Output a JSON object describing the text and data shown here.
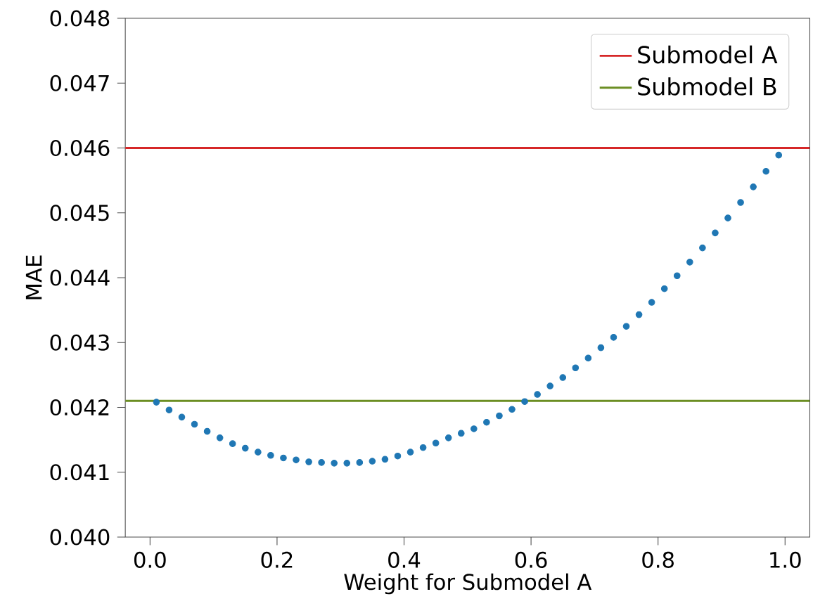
{
  "chart_data": {
    "type": "scatter",
    "xlabel": "Weight for Submodel A",
    "ylabel": "MAE",
    "xlim": [
      -0.039,
      1.039
    ],
    "ylim": [
      0.04,
      0.048
    ],
    "xticks": [
      {
        "value": 0,
        "label": "0.0"
      },
      {
        "value": 0.2,
        "label": "0.2"
      },
      {
        "value": 0.4,
        "label": "0.4"
      },
      {
        "value": 0.6,
        "label": "0.6"
      },
      {
        "value": 0.8,
        "label": "0.8"
      },
      {
        "value": 1,
        "label": "1.0"
      }
    ],
    "yticks": [
      {
        "value": 0.04,
        "label": "0.040"
      },
      {
        "value": 0.041,
        "label": "0.041"
      },
      {
        "value": 0.042,
        "label": "0.042"
      },
      {
        "value": 0.043,
        "label": "0.043"
      },
      {
        "value": 0.044,
        "label": "0.044"
      },
      {
        "value": 0.045,
        "label": "0.045"
      },
      {
        "value": 0.046,
        "label": "0.046"
      },
      {
        "value": 0.047,
        "label": "0.047"
      },
      {
        "value": 0.048,
        "label": "0.048"
      }
    ],
    "marker": "circle",
    "legend": "top right",
    "series": [
      {
        "color": "#1f77b4",
        "x": [
          0.01,
          0.03,
          0.05,
          0.07,
          0.09,
          0.11,
          0.13,
          0.15,
          0.17,
          0.19,
          0.21,
          0.23,
          0.25,
          0.27,
          0.29,
          0.31,
          0.33,
          0.35,
          0.37,
          0.39,
          0.41,
          0.43,
          0.45,
          0.47,
          0.49,
          0.51,
          0.53,
          0.55,
          0.57,
          0.59,
          0.61,
          0.63,
          0.65,
          0.67,
          0.69,
          0.71,
          0.73,
          0.75,
          0.77,
          0.79,
          0.81,
          0.83,
          0.85,
          0.87,
          0.89,
          0.91,
          0.93,
          0.95,
          0.97,
          0.99
        ],
        "values": [
          0.04208,
          0.04196,
          0.04185,
          0.04174,
          0.04163,
          0.04153,
          0.04144,
          0.04137,
          0.04131,
          0.04126,
          0.04122,
          0.04119,
          0.04116,
          0.04115,
          0.04114,
          0.04114,
          0.04115,
          0.04117,
          0.0412,
          0.04125,
          0.04131,
          0.04138,
          0.04145,
          0.04153,
          0.0416,
          0.04167,
          0.04177,
          0.04187,
          0.04197,
          0.04209,
          0.0422,
          0.04233,
          0.04246,
          0.04261,
          0.04276,
          0.04292,
          0.04308,
          0.04325,
          0.04343,
          0.04362,
          0.04383,
          0.04403,
          0.04424,
          0.04446,
          0.04469,
          0.04492,
          0.04516,
          0.0454,
          0.04564,
          0.04589
        ]
      }
    ],
    "ref_lines": [
      {
        "axis": "y",
        "value": 0.046,
        "label": "Submodel A",
        "color": "#d62728"
      },
      {
        "axis": "y",
        "value": 0.0421,
        "label": "Submodel B",
        "color": "#6b8e23"
      }
    ]
  }
}
